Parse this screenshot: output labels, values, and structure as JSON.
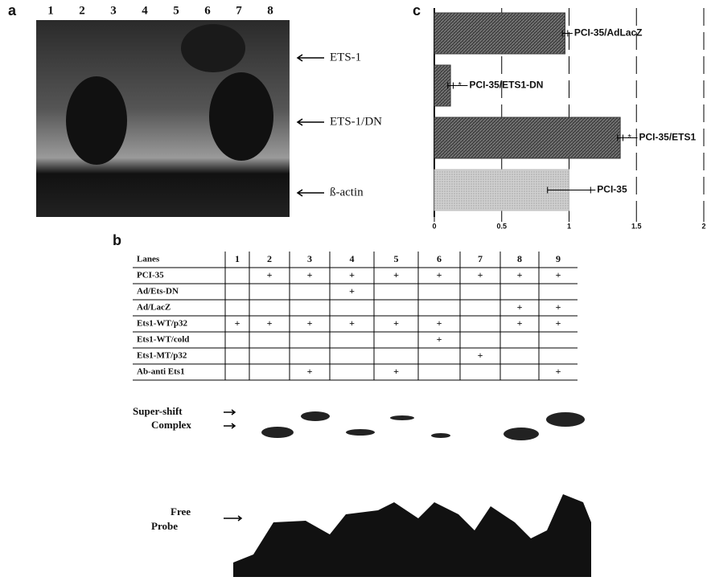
{
  "panel_a": {
    "label": "a",
    "lanes": [
      "1",
      "2",
      "3",
      "4",
      "5",
      "6",
      "7",
      "8"
    ],
    "bands": [
      "ETS-1",
      "ETS-1/DN",
      "ß-actin"
    ]
  },
  "panel_b": {
    "label": "b",
    "table": {
      "rows": [
        [
          "Lanes",
          "1",
          "2",
          "3",
          "4",
          "5",
          "6",
          "7",
          "8",
          "9"
        ],
        [
          "PCI-35",
          null,
          "+",
          "+",
          "+",
          "+",
          "+",
          "+",
          "+",
          "+"
        ],
        [
          "Ad/Ets-DN",
          null,
          null,
          null,
          "+",
          null,
          null,
          null,
          null,
          null
        ],
        [
          "Ad/LacZ",
          null,
          null,
          null,
          null,
          null,
          null,
          null,
          "+",
          "+"
        ],
        [
          "Ets1-WT/p32",
          "+",
          "+",
          "+",
          "+",
          "+",
          "+",
          null,
          "+",
          "+"
        ],
        [
          "Ets1-WT/cold",
          null,
          null,
          null,
          null,
          null,
          "+",
          null,
          null,
          null
        ],
        [
          "Ets1-MT/p32",
          null,
          null,
          null,
          null,
          null,
          null,
          "+",
          null,
          null
        ],
        [
          "Ab-anti Ets1",
          null,
          null,
          "+",
          null,
          "+",
          null,
          null,
          null,
          "+"
        ]
      ]
    },
    "gel_labels": [
      "Super-shift",
      "Complex",
      "Free",
      "Probe"
    ]
  },
  "chart_data": {
    "type": "hbar",
    "panel_label": "c",
    "categories": [
      "PCI-35/AdLacZ",
      "PCI-35/ETS1-DN",
      "PCI-35/ETS1",
      "PCI-35"
    ],
    "values": [
      0.97,
      0.12,
      1.38,
      1.0
    ],
    "errors": [
      0.02,
      0.02,
      0.02,
      0.16
    ],
    "significance": [
      null,
      "*",
      "*",
      null
    ],
    "colors": [
      "#3a3a3a",
      "#3a3a3a",
      "#3a3a3a",
      "#bdbdbd"
    ],
    "xlim": [
      0,
      2
    ],
    "xticks": [
      0,
      0.5,
      1,
      1.5,
      2
    ],
    "grid": true
  }
}
